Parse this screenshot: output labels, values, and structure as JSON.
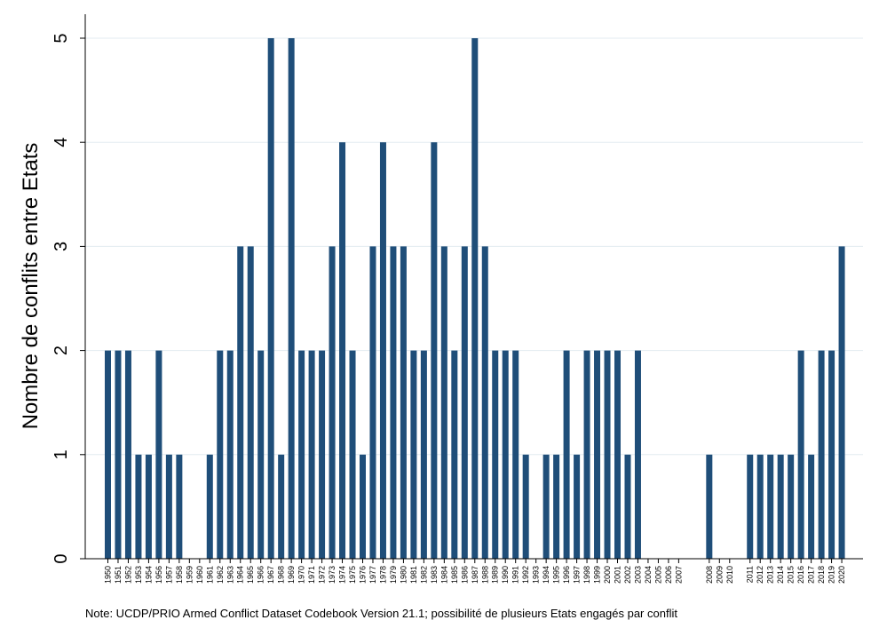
{
  "chart_data": {
    "type": "bar",
    "title": "",
    "xlabel": "",
    "ylabel": "Nombre de conflits entre Etats",
    "ylim": [
      0,
      5
    ],
    "yticks": [
      0,
      1,
      2,
      3,
      4,
      5
    ],
    "grid": true,
    "colors": {
      "bar": "#1f4e79",
      "grid": "#e3ebf0",
      "axis": "#000000"
    },
    "categories": [
      "1950",
      "1951",
      "1952",
      "1953",
      "1954",
      "1956",
      "1957",
      "1958",
      "1959",
      "1960",
      "1961",
      "1962",
      "1963",
      "1964",
      "1965",
      "1966",
      "1967",
      "1968",
      "1969",
      "1970",
      "1971",
      "1972",
      "1973",
      "1974",
      "1975",
      "1976",
      "1977",
      "1978",
      "1979",
      "1980",
      "1981",
      "1982",
      "1983",
      "1984",
      "1985",
      "1986",
      "1987",
      "1988",
      "1989",
      "1990",
      "1991",
      "1992",
      "1993",
      "1994",
      "1995",
      "1996",
      "1997",
      "1998",
      "1999",
      "2000",
      "2001",
      "2002",
      "2003",
      "2004",
      "2005",
      "2006",
      "2007",
      "2008",
      "2009",
      "2010",
      "2011",
      "2012",
      "2013",
      "2014",
      "2015",
      "2016",
      "2017",
      "2018",
      "2019",
      "2020"
    ],
    "values": [
      2,
      2,
      2,
      1,
      1,
      2,
      1,
      1,
      0,
      0,
      1,
      2,
      2,
      3,
      3,
      2,
      5,
      1,
      5,
      2,
      2,
      2,
      3,
      4,
      2,
      1,
      3,
      4,
      3,
      3,
      2,
      2,
      4,
      3,
      2,
      3,
      5,
      3,
      2,
      2,
      2,
      1,
      0,
      1,
      1,
      2,
      1,
      2,
      2,
      2,
      2,
      1,
      2,
      0,
      0,
      0,
      0,
      1,
      0,
      0,
      1,
      1,
      1,
      1,
      1,
      2,
      1,
      2,
      2,
      3
    ]
  },
  "note": "Note: UCDP/PRIO Armed Conflict Dataset Codebook Version 21.1; possibilité de plusieurs Etats engagés par conflit"
}
